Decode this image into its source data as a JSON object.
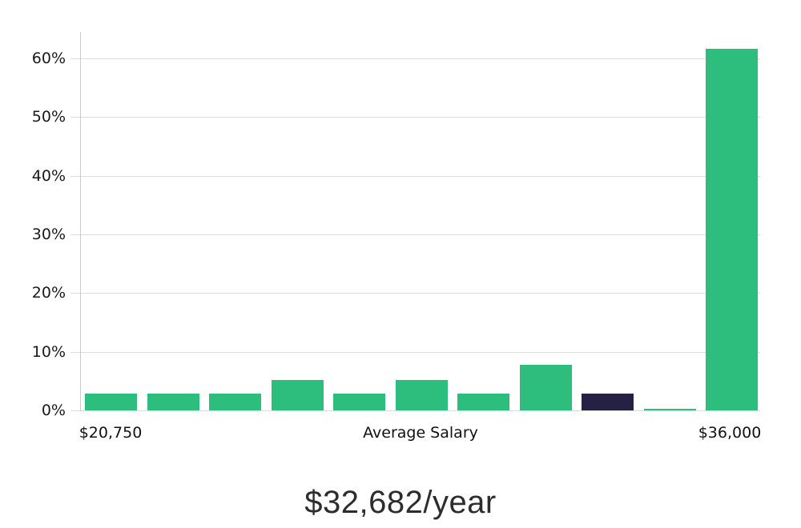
{
  "chart_data": {
    "type": "bar",
    "title": "$32,682/year",
    "ylabel": "",
    "xlabel": "",
    "ylim": [
      0,
      64.5
    ],
    "grid": true,
    "legend": "none",
    "y_ticks": [
      0,
      10,
      20,
      30,
      40,
      50,
      60
    ],
    "y_tick_labels": [
      "0%",
      "10%",
      "20%",
      "30%",
      "40%",
      "50%",
      "60%"
    ],
    "x_tick_labels": [
      "$20,750",
      "Average Salary",
      "$36,000"
    ],
    "values": [
      2.8,
      2.8,
      2.8,
      5.2,
      2.8,
      5.2,
      2.8,
      7.8,
      2.8,
      0.3,
      61.6
    ],
    "highlight_index": 8,
    "colors": {
      "bar": "#2dbe7d",
      "highlight_bar": "#252144",
      "gridline": "#dcdcdc",
      "axis_line": "#cccccc",
      "tick_text": "#1a1a1a",
      "title_text": "#2d2d2d",
      "background": "#ffffff"
    }
  }
}
